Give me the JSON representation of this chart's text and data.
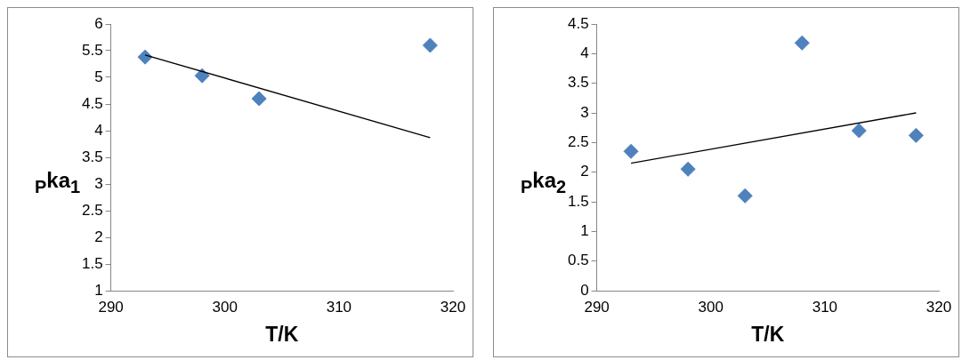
{
  "chart_data": [
    {
      "type": "scatter",
      "xlabel": "T/K",
      "ylabel": "$_{P}$ka$_{1}$",
      "xlim": [
        290,
        320
      ],
      "xticks": [
        290,
        300,
        310,
        320
      ],
      "ylim": [
        1,
        6
      ],
      "yticks": [
        1,
        1.5,
        2,
        2.5,
        3,
        3.5,
        4,
        4.5,
        5,
        5.5,
        6
      ],
      "grid": false,
      "legend": false,
      "marker": "diamond",
      "series": [
        {
          "color": "#4f81bd",
          "x": [
            293,
            298,
            303,
            318
          ],
          "values": [
            5.38,
            5.03,
            4.6,
            5.6
          ]
        },
        {
          "type": "line",
          "color": "#000000",
          "marker": "none",
          "x": [
            293,
            318
          ],
          "values": [
            5.42,
            3.87
          ]
        }
      ]
    },
    {
      "type": "scatter",
      "xlabel": "T/K",
      "ylabel": "$_{P}$ka$_{2}$",
      "xlim": [
        290,
        320
      ],
      "xticks": [
        290,
        300,
        310,
        320
      ],
      "ylim": [
        0,
        4.5
      ],
      "yticks": [
        0,
        0.5,
        1,
        1.5,
        2,
        2.5,
        3,
        3.5,
        4,
        4.5
      ],
      "grid": false,
      "legend": false,
      "marker": "diamond",
      "series": [
        {
          "color": "#4f81bd",
          "x": [
            293,
            298,
            303,
            308,
            313,
            318
          ],
          "values": [
            2.35,
            2.05,
            1.6,
            4.18,
            2.7,
            2.62
          ]
        },
        {
          "type": "line",
          "color": "#000000",
          "marker": "none",
          "x": [
            293,
            318
          ],
          "values": [
            2.15,
            3.0
          ]
        }
      ]
    }
  ]
}
